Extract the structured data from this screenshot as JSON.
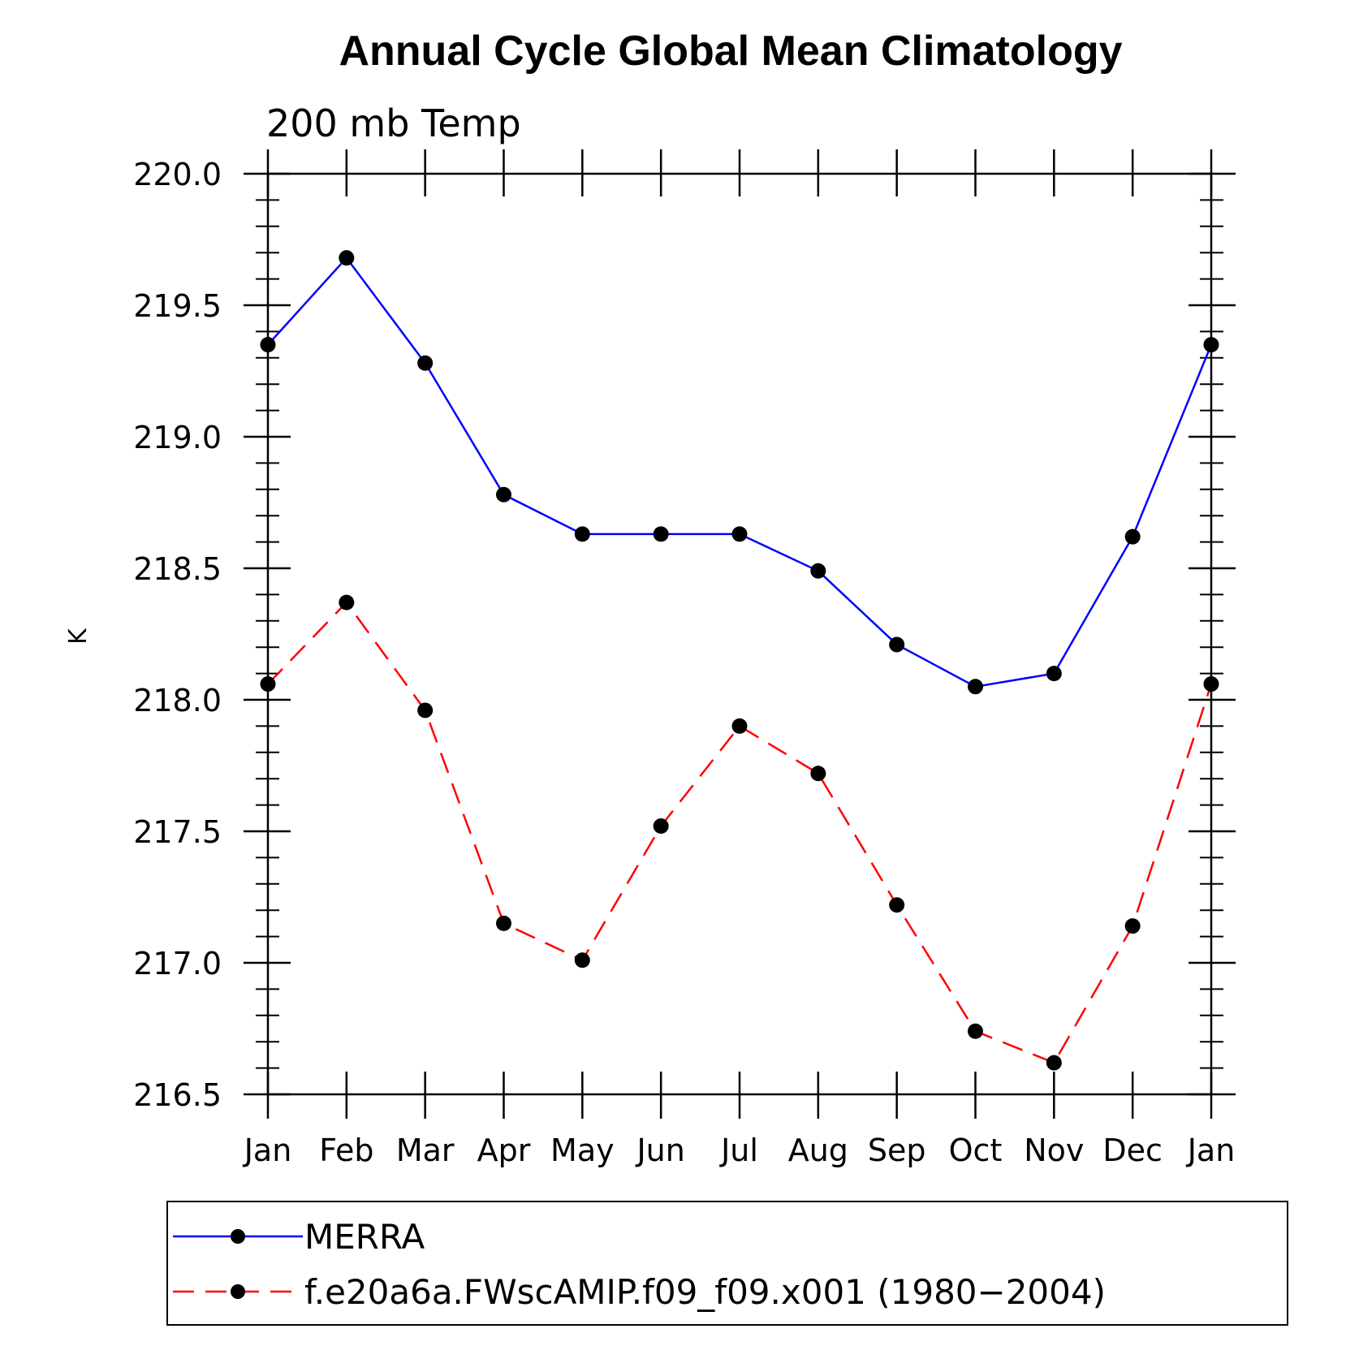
{
  "chart_data": {
    "type": "line",
    "title": "Annual Cycle Global Mean Climatology",
    "subtitle": "200 mb Temp",
    "ylabel": "K",
    "xlabel": "",
    "categories": [
      "Jan",
      "Feb",
      "Mar",
      "Apr",
      "May",
      "Jun",
      "Jul",
      "Aug",
      "Sep",
      "Oct",
      "Nov",
      "Dec",
      "Jan"
    ],
    "ylim": [
      216.5,
      220.0
    ],
    "y_ticks": [
      "216.5",
      "217.0",
      "217.5",
      "218.0",
      "218.5",
      "219.0",
      "219.5",
      "220.0"
    ],
    "y_tick_values": [
      216.5,
      217.0,
      217.5,
      218.0,
      218.5,
      219.0,
      219.5,
      220.0
    ],
    "series": [
      {
        "name": "MERRA",
        "color": "#0000ff",
        "dashed": false,
        "values": [
          219.35,
          219.68,
          219.28,
          218.78,
          218.63,
          218.63,
          218.63,
          218.49,
          218.21,
          218.05,
          218.1,
          218.62,
          219.35
        ]
      },
      {
        "name": "f.e20a6a.FWscAMIP.f09_f09.x001 (1980−2004)",
        "color": "#ff0000",
        "dashed": true,
        "values": [
          218.06,
          218.37,
          217.96,
          217.15,
          217.01,
          217.52,
          217.9,
          217.72,
          217.22,
          216.74,
          216.62,
          217.14,
          218.06
        ]
      }
    ],
    "legend_position": "bottom",
    "marker_color": "#000000"
  }
}
